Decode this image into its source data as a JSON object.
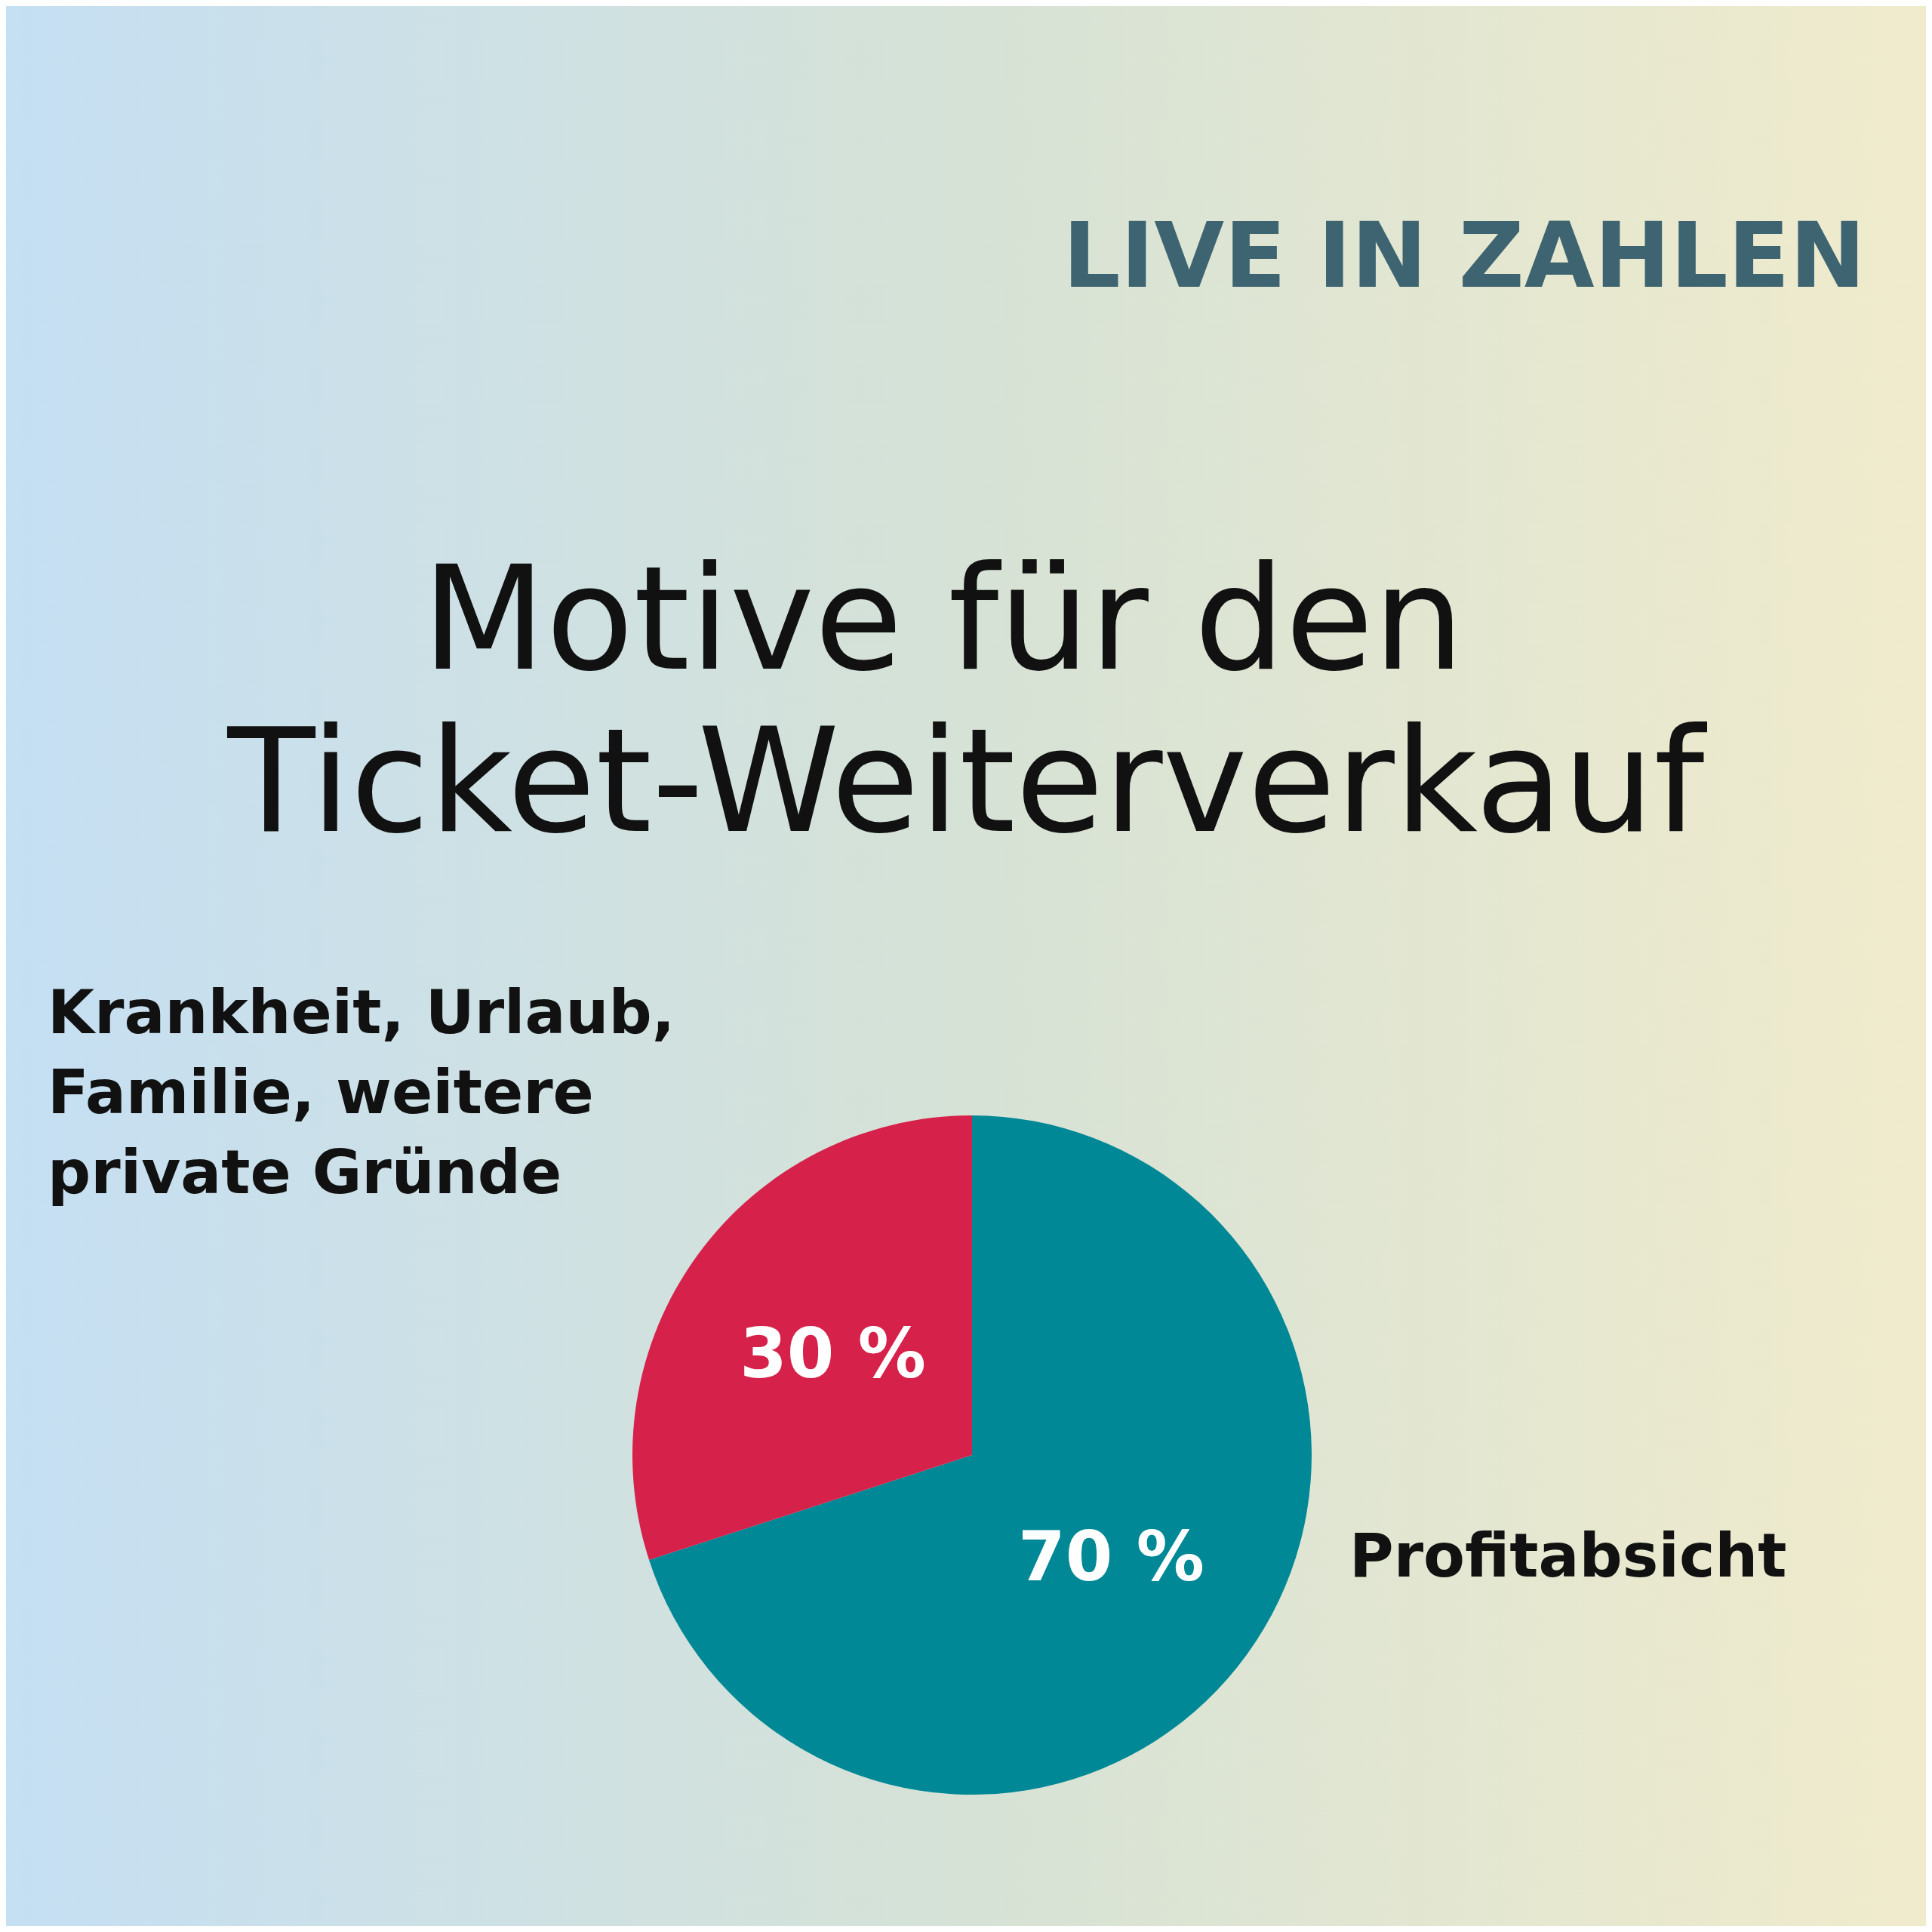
{
  "chart_data": {
    "type": "pie",
    "title": "Motive für den Ticket-Weiterverkauf",
    "subtitle": "LIVE IN ZAHLEN",
    "categories": [
      "Profitabsicht",
      "Krankheit, Urlaub, Familie, weitere private Gründe"
    ],
    "values": [
      70,
      30
    ],
    "colors": [
      "#008896",
      "#d6224b"
    ],
    "value_labels": [
      "70 %",
      "30 %"
    ],
    "legend": false
  }
}
